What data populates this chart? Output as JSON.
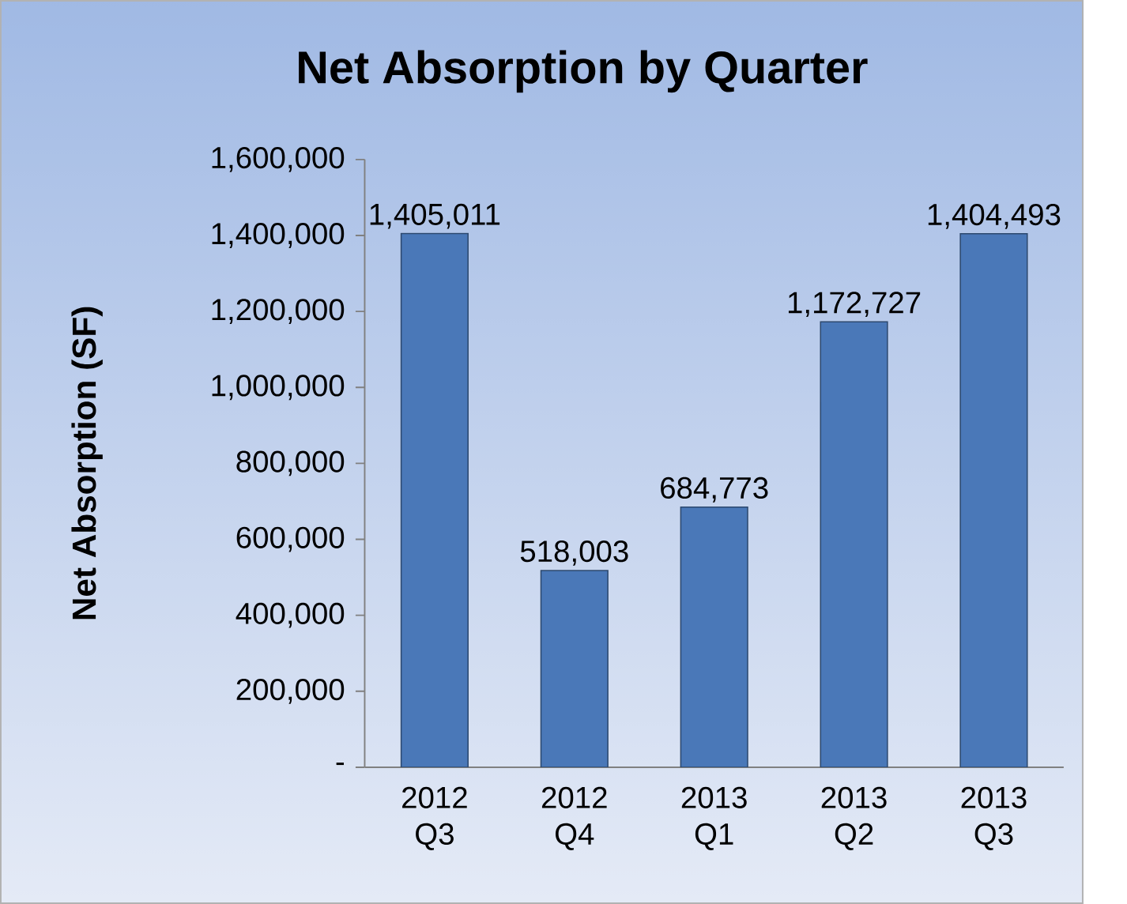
{
  "chart_data": {
    "type": "bar",
    "title": "Net Absorption by Quarter",
    "ylabel": "Net Absorption (SF)",
    "categories": [
      "2012 Q3",
      "2012 Q4",
      "2013 Q1",
      "2013 Q2",
      "2013 Q3"
    ],
    "values": [
      1405011,
      518003,
      684773,
      1172727,
      1404493
    ],
    "value_labels": [
      "1,405,011",
      "518,003",
      "684,773",
      "1,172,727",
      "1,404,493"
    ],
    "color": "#4a78b8",
    "ylim": [
      0,
      1600000
    ],
    "yticks": [
      {
        "value": 0,
        "label": "-"
      },
      {
        "value": 200000,
        "label": "200,000"
      },
      {
        "value": 400000,
        "label": "400,000"
      },
      {
        "value": 600000,
        "label": "600,000"
      },
      {
        "value": 800000,
        "label": "800,000"
      },
      {
        "value": 1000000,
        "label": "1,000,000"
      },
      {
        "value": 1200000,
        "label": "1,200,000"
      },
      {
        "value": 1400000,
        "label": "1,400,000"
      },
      {
        "value": 1600000,
        "label": "1,600,000"
      }
    ]
  }
}
